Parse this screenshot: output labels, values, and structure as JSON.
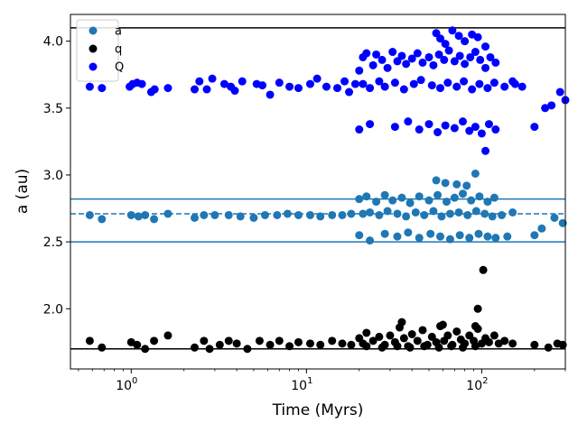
{
  "chart_data": {
    "type": "scatter",
    "xlabel": "Time (Myrs)",
    "ylabel": "a (au)",
    "x_scale": "log",
    "xlim": [
      0.45,
      300
    ],
    "ylim": [
      1.55,
      4.2
    ],
    "x_ticks": [
      {
        "value": 1,
        "label": "10",
        "exp": "0"
      },
      {
        "value": 10,
        "label": "10",
        "exp": "1"
      },
      {
        "value": 100,
        "label": "10",
        "exp": "2"
      }
    ],
    "y_ticks": [
      {
        "value": 2.0,
        "label": "2.0"
      },
      {
        "value": 2.5,
        "label": "2.5"
      },
      {
        "value": 3.0,
        "label": "3.0"
      },
      {
        "value": 3.5,
        "label": "3.5"
      },
      {
        "value": 4.0,
        "label": "4.0"
      }
    ],
    "grid": false,
    "legend": {
      "position": "top-left",
      "entries": [
        {
          "label": "a",
          "color": "#1f77b4"
        },
        {
          "label": "q",
          "color": "#000000"
        },
        {
          "label": "Q",
          "color": "#0000ff"
        }
      ]
    },
    "reference_lines": [
      {
        "y": 4.1,
        "color": "#000000",
        "style": "solid"
      },
      {
        "y": 2.82,
        "color": "#1f77b4",
        "style": "solid"
      },
      {
        "y": 2.71,
        "color": "#1f77b4",
        "style": "dashed"
      },
      {
        "y": 2.5,
        "color": "#1f77b4",
        "style": "solid"
      },
      {
        "y": 1.7,
        "color": "#000000",
        "style": "solid"
      }
    ],
    "series": [
      {
        "name": "Q",
        "color": "#0000ff",
        "points": [
          [
            0.58,
            3.66
          ],
          [
            0.68,
            3.65
          ],
          [
            0.98,
            3.66
          ],
          [
            1.02,
            3.68
          ],
          [
            1.08,
            3.69
          ],
          [
            1.15,
            3.68
          ],
          [
            1.3,
            3.62
          ],
          [
            1.36,
            3.64
          ],
          [
            1.62,
            3.65
          ],
          [
            2.3,
            3.64
          ],
          [
            2.45,
            3.7
          ],
          [
            2.7,
            3.64
          ],
          [
            2.9,
            3.72
          ],
          [
            3.4,
            3.68
          ],
          [
            3.7,
            3.66
          ],
          [
            3.9,
            3.63
          ],
          [
            4.3,
            3.7
          ],
          [
            5.2,
            3.68
          ],
          [
            5.6,
            3.67
          ],
          [
            6.2,
            3.6
          ],
          [
            7.0,
            3.69
          ],
          [
            8.0,
            3.66
          ],
          [
            9.0,
            3.65
          ],
          [
            10.5,
            3.68
          ],
          [
            11.5,
            3.72
          ],
          [
            13.0,
            3.66
          ],
          [
            15.0,
            3.65
          ],
          [
            16.5,
            3.7
          ],
          [
            17.5,
            3.62
          ],
          [
            19.0,
            3.68
          ],
          [
            20,
            3.78
          ],
          [
            21,
            3.88
          ],
          [
            22,
            3.91
          ],
          [
            24,
            3.82
          ],
          [
            25,
            3.9
          ],
          [
            27,
            3.86
          ],
          [
            29,
            3.8
          ],
          [
            31,
            3.92
          ],
          [
            33,
            3.85
          ],
          [
            35,
            3.89
          ],
          [
            37,
            3.83
          ],
          [
            40,
            3.87
          ],
          [
            43,
            3.91
          ],
          [
            46,
            3.84
          ],
          [
            50,
            3.88
          ],
          [
            53,
            3.82
          ],
          [
            57,
            3.9
          ],
          [
            61,
            3.86
          ],
          [
            65,
            3.93
          ],
          [
            70,
            3.85
          ],
          [
            75,
            3.89
          ],
          [
            80,
            3.83
          ],
          [
            86,
            3.88
          ],
          [
            92,
            3.92
          ],
          [
            98,
            3.86
          ],
          [
            105,
            3.8
          ],
          [
            112,
            3.88
          ],
          [
            120,
            3.84
          ],
          [
            21,
            3.68
          ],
          [
            23,
            3.65
          ],
          [
            26,
            3.7
          ],
          [
            28,
            3.66
          ],
          [
            32,
            3.69
          ],
          [
            36,
            3.64
          ],
          [
            41,
            3.68
          ],
          [
            45,
            3.71
          ],
          [
            52,
            3.67
          ],
          [
            58,
            3.65
          ],
          [
            64,
            3.69
          ],
          [
            72,
            3.66
          ],
          [
            79,
            3.7
          ],
          [
            88,
            3.64
          ],
          [
            97,
            3.68
          ],
          [
            108,
            3.65
          ],
          [
            118,
            3.69
          ],
          [
            135,
            3.66
          ],
          [
            150,
            3.7
          ],
          [
            20,
            3.34
          ],
          [
            23,
            3.38
          ],
          [
            32,
            3.36
          ],
          [
            38,
            3.4
          ],
          [
            44,
            3.34
          ],
          [
            50,
            3.38
          ],
          [
            56,
            3.32
          ],
          [
            62,
            3.37
          ],
          [
            70,
            3.35
          ],
          [
            78,
            3.4
          ],
          [
            85,
            3.33
          ],
          [
            92,
            3.36
          ],
          [
            100,
            3.31
          ],
          [
            110,
            3.38
          ],
          [
            120,
            3.34
          ],
          [
            105,
            3.18
          ],
          [
            55,
            4.06
          ],
          [
            58,
            4.02
          ],
          [
            62,
            3.98
          ],
          [
            68,
            4.08
          ],
          [
            74,
            4.04
          ],
          [
            80,
            4.0
          ],
          [
            88,
            4.05
          ],
          [
            95,
            4.03
          ],
          [
            105,
            3.96
          ],
          [
            155,
            3.68
          ],
          [
            170,
            3.66
          ],
          [
            200,
            3.36
          ],
          [
            230,
            3.5
          ],
          [
            250,
            3.52
          ],
          [
            280,
            3.62
          ],
          [
            300,
            3.56
          ]
        ]
      },
      {
        "name": "a",
        "color": "#1f77b4",
        "points": [
          [
            0.58,
            2.7
          ],
          [
            0.68,
            2.67
          ],
          [
            1.0,
            2.7
          ],
          [
            1.1,
            2.69
          ],
          [
            1.2,
            2.7
          ],
          [
            1.35,
            2.67
          ],
          [
            1.62,
            2.71
          ],
          [
            2.3,
            2.68
          ],
          [
            2.6,
            2.7
          ],
          [
            3.0,
            2.7
          ],
          [
            3.6,
            2.7
          ],
          [
            4.2,
            2.69
          ],
          [
            5.0,
            2.68
          ],
          [
            5.8,
            2.7
          ],
          [
            6.8,
            2.7
          ],
          [
            7.8,
            2.71
          ],
          [
            9.0,
            2.7
          ],
          [
            10.5,
            2.7
          ],
          [
            12.0,
            2.69
          ],
          [
            14.0,
            2.7
          ],
          [
            16.0,
            2.7
          ],
          [
            18.0,
            2.71
          ],
          [
            20,
            2.82
          ],
          [
            22,
            2.84
          ],
          [
            25,
            2.8
          ],
          [
            28,
            2.85
          ],
          [
            31,
            2.81
          ],
          [
            35,
            2.83
          ],
          [
            39,
            2.79
          ],
          [
            44,
            2.84
          ],
          [
            50,
            2.81
          ],
          [
            56,
            2.85
          ],
          [
            63,
            2.8
          ],
          [
            70,
            2.83
          ],
          [
            78,
            2.86
          ],
          [
            87,
            2.81
          ],
          [
            97,
            2.84
          ],
          [
            108,
            2.8
          ],
          [
            118,
            2.83
          ],
          [
            21,
            2.71
          ],
          [
            23,
            2.72
          ],
          [
            26,
            2.7
          ],
          [
            29,
            2.73
          ],
          [
            33,
            2.71
          ],
          [
            37,
            2.69
          ],
          [
            42,
            2.72
          ],
          [
            47,
            2.7
          ],
          [
            53,
            2.73
          ],
          [
            59,
            2.69
          ],
          [
            66,
            2.71
          ],
          [
            74,
            2.72
          ],
          [
            83,
            2.7
          ],
          [
            93,
            2.73
          ],
          [
            104,
            2.71
          ],
          [
            115,
            2.69
          ],
          [
            130,
            2.7
          ],
          [
            150,
            2.72
          ],
          [
            20,
            2.55
          ],
          [
            23,
            2.51
          ],
          [
            28,
            2.56
          ],
          [
            33,
            2.54
          ],
          [
            38,
            2.57
          ],
          [
            44,
            2.53
          ],
          [
            51,
            2.56
          ],
          [
            58,
            2.54
          ],
          [
            66,
            2.52
          ],
          [
            75,
            2.55
          ],
          [
            85,
            2.53
          ],
          [
            96,
            2.56
          ],
          [
            108,
            2.54
          ],
          [
            120,
            2.53
          ],
          [
            140,
            2.54
          ],
          [
            55,
            2.96
          ],
          [
            62,
            2.94
          ],
          [
            72,
            2.93
          ],
          [
            82,
            2.92
          ],
          [
            92,
            3.01
          ],
          [
            200,
            2.55
          ],
          [
            220,
            2.6
          ],
          [
            260,
            2.68
          ],
          [
            290,
            2.64
          ]
        ]
      },
      {
        "name": "q",
        "color": "#000000",
        "points": [
          [
            0.58,
            1.76
          ],
          [
            0.68,
            1.71
          ],
          [
            1.0,
            1.75
          ],
          [
            1.08,
            1.73
          ],
          [
            1.2,
            1.7
          ],
          [
            1.35,
            1.76
          ],
          [
            1.62,
            1.8
          ],
          [
            2.3,
            1.71
          ],
          [
            2.6,
            1.76
          ],
          [
            2.8,
            1.7
          ],
          [
            3.2,
            1.73
          ],
          [
            3.6,
            1.76
          ],
          [
            4.0,
            1.74
          ],
          [
            4.6,
            1.7
          ],
          [
            5.4,
            1.76
          ],
          [
            6.2,
            1.73
          ],
          [
            7.0,
            1.76
          ],
          [
            8.0,
            1.72
          ],
          [
            9.0,
            1.75
          ],
          [
            10.5,
            1.74
          ],
          [
            12,
            1.73
          ],
          [
            14,
            1.76
          ],
          [
            16,
            1.74
          ],
          [
            18,
            1.73
          ],
          [
            20,
            1.78
          ],
          [
            21,
            1.74
          ],
          [
            22,
            1.82
          ],
          [
            24,
            1.76
          ],
          [
            26,
            1.79
          ],
          [
            28,
            1.73
          ],
          [
            30,
            1.8
          ],
          [
            32,
            1.75
          ],
          [
            34,
            1.86
          ],
          [
            36,
            1.78
          ],
          [
            38,
            1.72
          ],
          [
            40,
            1.81
          ],
          [
            43,
            1.76
          ],
          [
            46,
            1.84
          ],
          [
            49,
            1.73
          ],
          [
            52,
            1.79
          ],
          [
            55,
            1.75
          ],
          [
            58,
            1.87
          ],
          [
            61,
            1.76
          ],
          [
            64,
            1.8
          ],
          [
            68,
            1.73
          ],
          [
            72,
            1.83
          ],
          [
            76,
            1.77
          ],
          [
            80,
            1.74
          ],
          [
            85,
            1.8
          ],
          [
            90,
            1.76
          ],
          [
            95,
            1.85
          ],
          [
            100,
            1.74
          ],
          [
            105,
            1.78
          ],
          [
            110,
            1.75
          ],
          [
            118,
            1.8
          ],
          [
            125,
            1.74
          ],
          [
            135,
            1.76
          ],
          [
            150,
            1.74
          ],
          [
            22,
            1.72
          ],
          [
            27,
            1.71
          ],
          [
            33,
            1.72
          ],
          [
            39,
            1.71
          ],
          [
            47,
            1.72
          ],
          [
            57,
            1.71
          ],
          [
            67,
            1.72
          ],
          [
            78,
            1.71
          ],
          [
            92,
            1.72
          ],
          [
            35,
            1.9
          ],
          [
            60,
            1.88
          ],
          [
            92,
            1.87
          ],
          [
            95,
            2.0
          ],
          [
            102,
            2.29
          ],
          [
            200,
            1.73
          ],
          [
            240,
            1.71
          ],
          [
            270,
            1.74
          ],
          [
            290,
            1.73
          ]
        ]
      }
    ]
  }
}
